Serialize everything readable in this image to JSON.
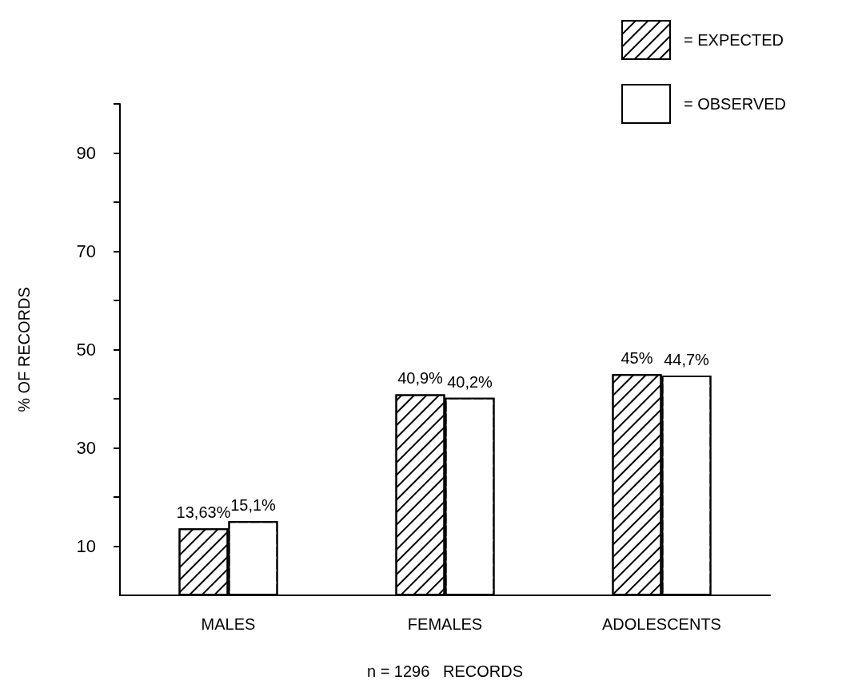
{
  "chart_data": {
    "type": "bar",
    "xlabel": "n = 1296   RECORDS",
    "ylabel": "% OF RECORDS",
    "categories": [
      "MALES",
      "FEMALES",
      "ADOLESCENTS"
    ],
    "series": [
      {
        "name": "= EXPECTED",
        "color": "#000000",
        "values": [
          13.63,
          40.9,
          45
        ],
        "value_labels": [
          "13,63%",
          "40,9%",
          "45%"
        ]
      },
      {
        "name": "= OBSERVED",
        "color": "#ffffff",
        "values": [
          15.1,
          40.2,
          44.7
        ],
        "value_labels": [
          "15,1%",
          "40,2%",
          "44,7%"
        ]
      }
    ],
    "ylim": [
      0,
      100
    ],
    "yticks": [
      10,
      {
        "value": 20,
        "label": null
      },
      30,
      {
        "value": 40,
        "label": null
      },
      50,
      {
        "value": 60,
        "label": null
      },
      70,
      {
        "value": 80,
        "label": null
      },
      90,
      {
        "value": 100,
        "label": null
      }
    ],
    "grid": false,
    "legend": "top right"
  }
}
